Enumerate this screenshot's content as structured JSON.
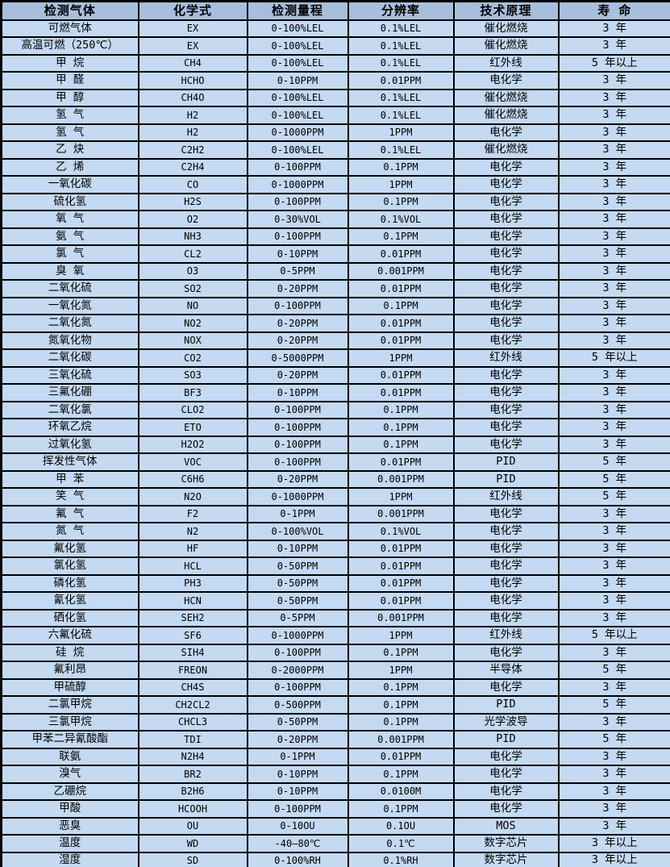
{
  "colors": {
    "header_bg": "#a7bfdc",
    "row_bg": "#c4d9f2",
    "border": "#000000",
    "text": "#000000"
  },
  "table": {
    "columns": [
      {
        "key": "gas",
        "label": "检测气体"
      },
      {
        "key": "formula",
        "label": "化学式"
      },
      {
        "key": "range",
        "label": "检测量程"
      },
      {
        "key": "resolution",
        "label": "分辨率"
      },
      {
        "key": "principle",
        "label": "技术原理"
      },
      {
        "key": "lifespan",
        "label": "寿 命"
      }
    ],
    "rows": [
      [
        "可燃气体",
        "EX",
        "0-100%LEL",
        "0.1%LEL",
        "催化燃烧",
        "3 年"
      ],
      [
        "高温可燃（250℃）",
        "EX",
        "0-100%LEL",
        "0.1%LEL",
        "催化燃烧",
        "3 年"
      ],
      [
        "甲 烷",
        "CH4",
        "0-100%LEL",
        "0.1%LEL",
        "红外线",
        "5 年以上"
      ],
      [
        "甲 醛",
        "HCHO",
        "0-10PPM",
        "0.01PPM",
        "电化学",
        "3 年"
      ],
      [
        "甲 醇",
        "CH4O",
        "0-100%LEL",
        "0.1%LEL",
        "催化燃烧",
        "3 年"
      ],
      [
        "氢 气",
        "H2",
        "0-100%LEL",
        "0.1%LEL",
        "催化燃烧",
        "3 年"
      ],
      [
        "氢 气",
        "H2",
        "0-1000PPM",
        "1PPM",
        "电化学",
        "3 年"
      ],
      [
        "乙 炔",
        "C2H2",
        "0-100%LEL",
        "0.1%LEL",
        "催化燃烧",
        "3 年"
      ],
      [
        "乙 烯",
        "C2H4",
        "0-100PPM",
        "0.1PPM",
        "电化学",
        "3 年"
      ],
      [
        "一氧化碳",
        "CO",
        "0-1000PPM",
        "1PPM",
        "电化学",
        "3 年"
      ],
      [
        "硫化氢",
        "H2S",
        "0-100PPM",
        "0.1PPM",
        "电化学",
        "3 年"
      ],
      [
        "氧 气",
        "O2",
        "0-30%VOL",
        "0.1%VOL",
        "电化学",
        "3 年"
      ],
      [
        "氨 气",
        "NH3",
        "0-100PPM",
        "0.1PPM",
        "电化学",
        "3 年"
      ],
      [
        "氯 气",
        "CL2",
        "0-10PPM",
        "0.01PPM",
        "电化学",
        "3 年"
      ],
      [
        "臭 氧",
        "O3",
        "0-5PPM",
        "0.001PPM",
        "电化学",
        "3 年"
      ],
      [
        "二氧化硫",
        "SO2",
        "0-20PPM",
        "0.01PPM",
        "电化学",
        "3 年"
      ],
      [
        "一氧化氮",
        "NO",
        "0-100PPM",
        "0.1PPM",
        "电化学",
        "3 年"
      ],
      [
        "二氧化氮",
        "NO2",
        "0-20PPM",
        "0.01PPM",
        "电化学",
        "3 年"
      ],
      [
        "氮氧化物",
        "NOX",
        "0-20PPM",
        "0.01PPM",
        "电化学",
        "3 年"
      ],
      [
        "二氧化碳",
        "CO2",
        "0-5000PPM",
        "1PPM",
        "红外线",
        "5 年以上"
      ],
      [
        "三氧化硫",
        "SO3",
        "0-20PPM",
        "0.01PPM",
        "电化学",
        "3 年"
      ],
      [
        "三氟化硼",
        "BF3",
        "0-10PPM",
        "0.01PPM",
        "电化学",
        "3 年"
      ],
      [
        "二氧化氯",
        "CLO2",
        "0-100PPM",
        "0.1PPM",
        "电化学",
        "3 年"
      ],
      [
        "环氧乙烷",
        "ETO",
        "0-100PPM",
        "0.1PPM",
        "电化学",
        "3 年"
      ],
      [
        "过氧化氢",
        "H2O2",
        "0-100PPM",
        "0.1PPM",
        "电化学",
        "3 年"
      ],
      [
        "挥发性气体",
        "VOC",
        "0-100PPM",
        "0.01PPM",
        "PID",
        "5 年"
      ],
      [
        "甲 苯",
        "C6H6",
        "0-20PPM",
        "0.001PPM",
        "PID",
        "5 年"
      ],
      [
        "笑 气",
        "N2O",
        "0-1000PPM",
        "1PPM",
        "红外线",
        "5 年"
      ],
      [
        "氟 气",
        "F2",
        "0-1PPM",
        "0.001PPM",
        "电化学",
        "3 年"
      ],
      [
        "氮 气",
        "N2",
        "0-100%VOL",
        "0.1%VOL",
        "电化学",
        "3 年"
      ],
      [
        "氟化氢",
        "HF",
        "0-10PPM",
        "0.01PPM",
        "电化学",
        "3 年"
      ],
      [
        "氯化氢",
        "HCL",
        "0-50PPM",
        "0.01PPM",
        "电化学",
        "3 年"
      ],
      [
        "磷化氢",
        "PH3",
        "0-50PPM",
        "0.01PPM",
        "电化学",
        "3 年"
      ],
      [
        "氰化氢",
        "HCN",
        "0-50PPM",
        "0.01PPM",
        "电化学",
        "3 年"
      ],
      [
        "硒化氢",
        "SEH2",
        "0-5PPM",
        "0.001PPM",
        "电化学",
        "3 年"
      ],
      [
        "六氟化硫",
        "SF6",
        "0-1000PPM",
        "1PPM",
        "红外线",
        "5 年以上"
      ],
      [
        "硅 烷",
        "SIH4",
        "0-100PPM",
        "0.1PPM",
        "电化学",
        "3 年"
      ],
      [
        "氟利昂",
        "FREON",
        "0-2000PPM",
        "1PPM",
        "半导体",
        "5 年"
      ],
      [
        "甲硫醇",
        "CH4S",
        "0-100PPM",
        "0.1PPM",
        "电化学",
        "3 年"
      ],
      [
        "二氯甲烷",
        "CH2CL2",
        "0-500PPM",
        "0.1PPM",
        "PID",
        "5 年"
      ],
      [
        "三氯甲烷",
        "CHCL3",
        "0-50PPM",
        "0.1PPM",
        "光学波导",
        "3 年"
      ],
      [
        "甲苯二异氰酸酯",
        "TDI",
        "0-20PPM",
        "0.001PPM",
        "PID",
        "5 年"
      ],
      [
        "联氨",
        "N2H4",
        "0-1PPM",
        "0.01PPM",
        "电化学",
        "3 年"
      ],
      [
        "溴气",
        "BR2",
        "0-10PPM",
        "0.1PPM",
        "电化学",
        "3 年"
      ],
      [
        "乙硼烷",
        "B2H6",
        "0-10PPM",
        "0.0100M",
        "电化学",
        "3 年"
      ],
      [
        "甲酸",
        "HCOOH",
        "0-100PPM",
        "0.1PPM",
        "电化学",
        "3 年"
      ],
      [
        "恶臭",
        "OU",
        "0-10OU",
        "0.1OU",
        "MOS",
        "3 年"
      ],
      [
        "温度",
        "WD",
        "-40—80℃",
        "0.1℃",
        "数字芯片",
        "3 年以上"
      ],
      [
        "湿度",
        "SD",
        "0-100%RH",
        "0.1%RH",
        "数字芯片",
        "3 年以上"
      ]
    ]
  }
}
